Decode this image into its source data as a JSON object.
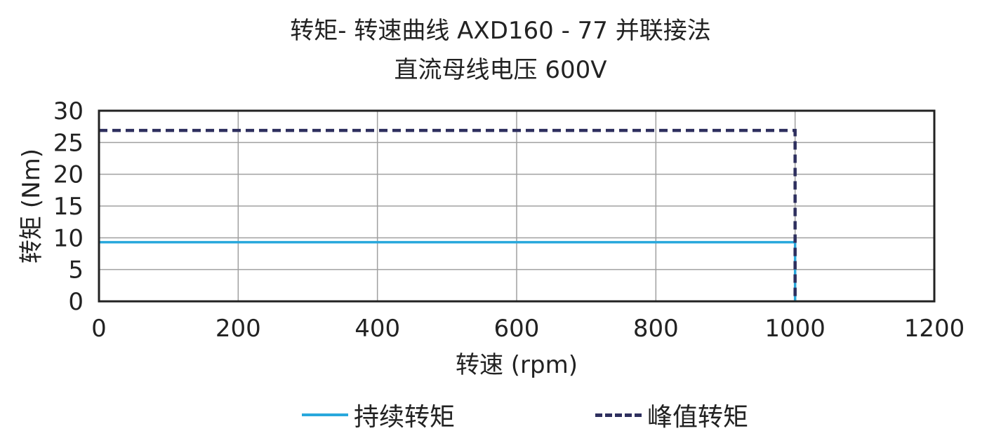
{
  "chart_data": {
    "type": "line",
    "title": "转矩- 转速曲线 AXD160 - 77 并联接法",
    "subtitle": "直流母线电压 600V",
    "xlabel": "转速 (rpm)",
    "ylabel": "转矩 (Nm)",
    "xlim": [
      0,
      1200
    ],
    "ylim": [
      0,
      30
    ],
    "xticks": [
      0,
      200,
      400,
      600,
      800,
      1000,
      1200
    ],
    "yticks": [
      0,
      5,
      10,
      15,
      20,
      25,
      30
    ],
    "grid": true,
    "legend_position": "bottom",
    "series": [
      {
        "name": "持续转矩",
        "color": "#29a8dc",
        "style": "solid",
        "points": [
          [
            0,
            9.3
          ],
          [
            1000,
            9.3
          ],
          [
            1000,
            0
          ]
        ]
      },
      {
        "name": "峰值转矩",
        "color": "#2e2f5e",
        "style": "dashed",
        "points": [
          [
            0,
            26.9
          ],
          [
            1000,
            26.9
          ],
          [
            1000,
            0
          ]
        ]
      }
    ]
  }
}
